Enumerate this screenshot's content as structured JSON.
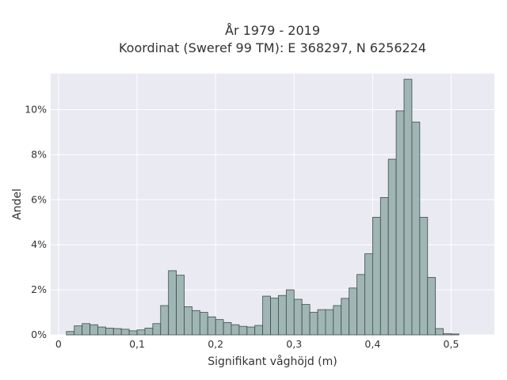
{
  "chart_data": {
    "type": "bar",
    "title": "År 1979 - 2019",
    "subtitle": "Koordinat (Sweref 99 TM): E 368297, N 6256224",
    "xlabel": "Signifikant våghöjd (m)",
    "ylabel": "Andel",
    "xlim": [
      -0.01,
      0.555
    ],
    "ylim": [
      0,
      0.116
    ],
    "x_ticks": [
      0,
      0.1,
      0.2,
      0.3,
      0.4,
      0.5
    ],
    "x_tick_labels": [
      "0",
      "0,1",
      "0,2",
      "0,3",
      "0,4",
      "0,5"
    ],
    "y_ticks": [
      0,
      0.02,
      0.04,
      0.06,
      0.08,
      0.1
    ],
    "y_tick_labels": [
      "0%",
      "2%",
      "4%",
      "6%",
      "8%",
      "10%"
    ],
    "bin_width": 0.01,
    "bin_start": 0.01,
    "values": [
      0.0015,
      0.004,
      0.005,
      0.0045,
      0.0035,
      0.003,
      0.0028,
      0.0025,
      0.0018,
      0.0022,
      0.003,
      0.005,
      0.013,
      0.0285,
      0.0265,
      0.0125,
      0.0108,
      0.01,
      0.008,
      0.0068,
      0.0055,
      0.0045,
      0.0038,
      0.0035,
      0.0042,
      0.0172,
      0.0163,
      0.0175,
      0.02,
      0.0158,
      0.0135,
      0.01,
      0.0112,
      0.0112,
      0.013,
      0.0162,
      0.0208,
      0.0268,
      0.036,
      0.0522,
      0.061,
      0.078,
      0.0995,
      0.1135,
      0.0945,
      0.0522,
      0.0255,
      0.0028,
      0.0005,
      0.0004
    ],
    "grid": true,
    "colors": {
      "bar_fill": "#9fb6b4",
      "bar_edge": "#3d4d4c",
      "plot_bg": "#eaeaf2",
      "grid": "#ffffff"
    }
  }
}
